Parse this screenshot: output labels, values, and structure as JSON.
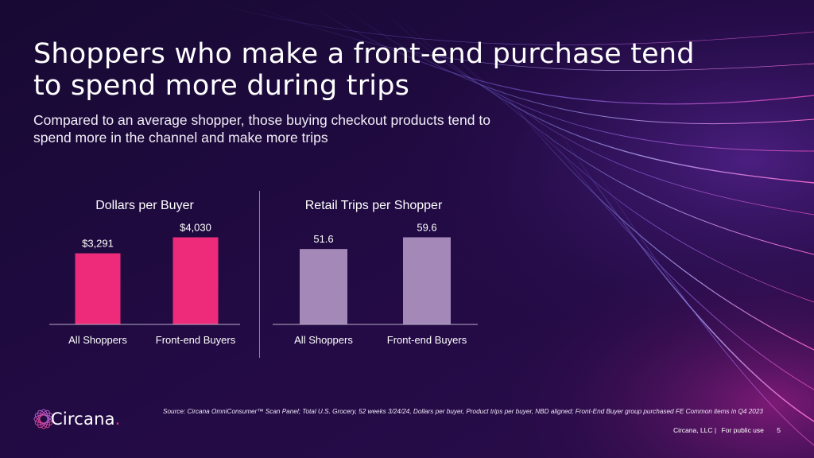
{
  "slide": {
    "title": "Shoppers who make a front-end purchase tend to spend more during trips",
    "subtitle": "Compared to an average shopper, those buying checkout products tend to spend more in the channel and make more trips",
    "source": "Source: Circana OmniConsumer™ Scan Panel; Total U.S. Grocery, 52 weeks 3/24/24, Dollars per buyer, Product trips per buyer, NBD aligned; Front-End Buyer group purchased FE Common items in Q4 2023",
    "footer_company": "Circana, LLC |",
    "footer_usage": "For public use",
    "page_number": "5",
    "logo_text": "Circana",
    "logo_dot": "."
  },
  "colors": {
    "background": "#1e0a3c",
    "dollars_bar": "#ee2b7a",
    "trips_bar": "#a488b8",
    "accent": "#e8327c"
  },
  "chart_data": [
    {
      "type": "bar",
      "title": "Dollars per Buyer",
      "categories": [
        "All Shoppers",
        "Front-end Buyers"
      ],
      "values": [
        3291,
        4030
      ],
      "value_labels": [
        "$3,291",
        "$4,030"
      ],
      "ylim": [
        0,
        4600
      ]
    },
    {
      "type": "bar",
      "title": "Retail Trips per Shopper",
      "categories": [
        "All Shoppers",
        "Front-end Buyers"
      ],
      "values": [
        51.6,
        59.6
      ],
      "value_labels": [
        "51.6",
        "59.6"
      ],
      "ylim": [
        0,
        68
      ]
    }
  ]
}
